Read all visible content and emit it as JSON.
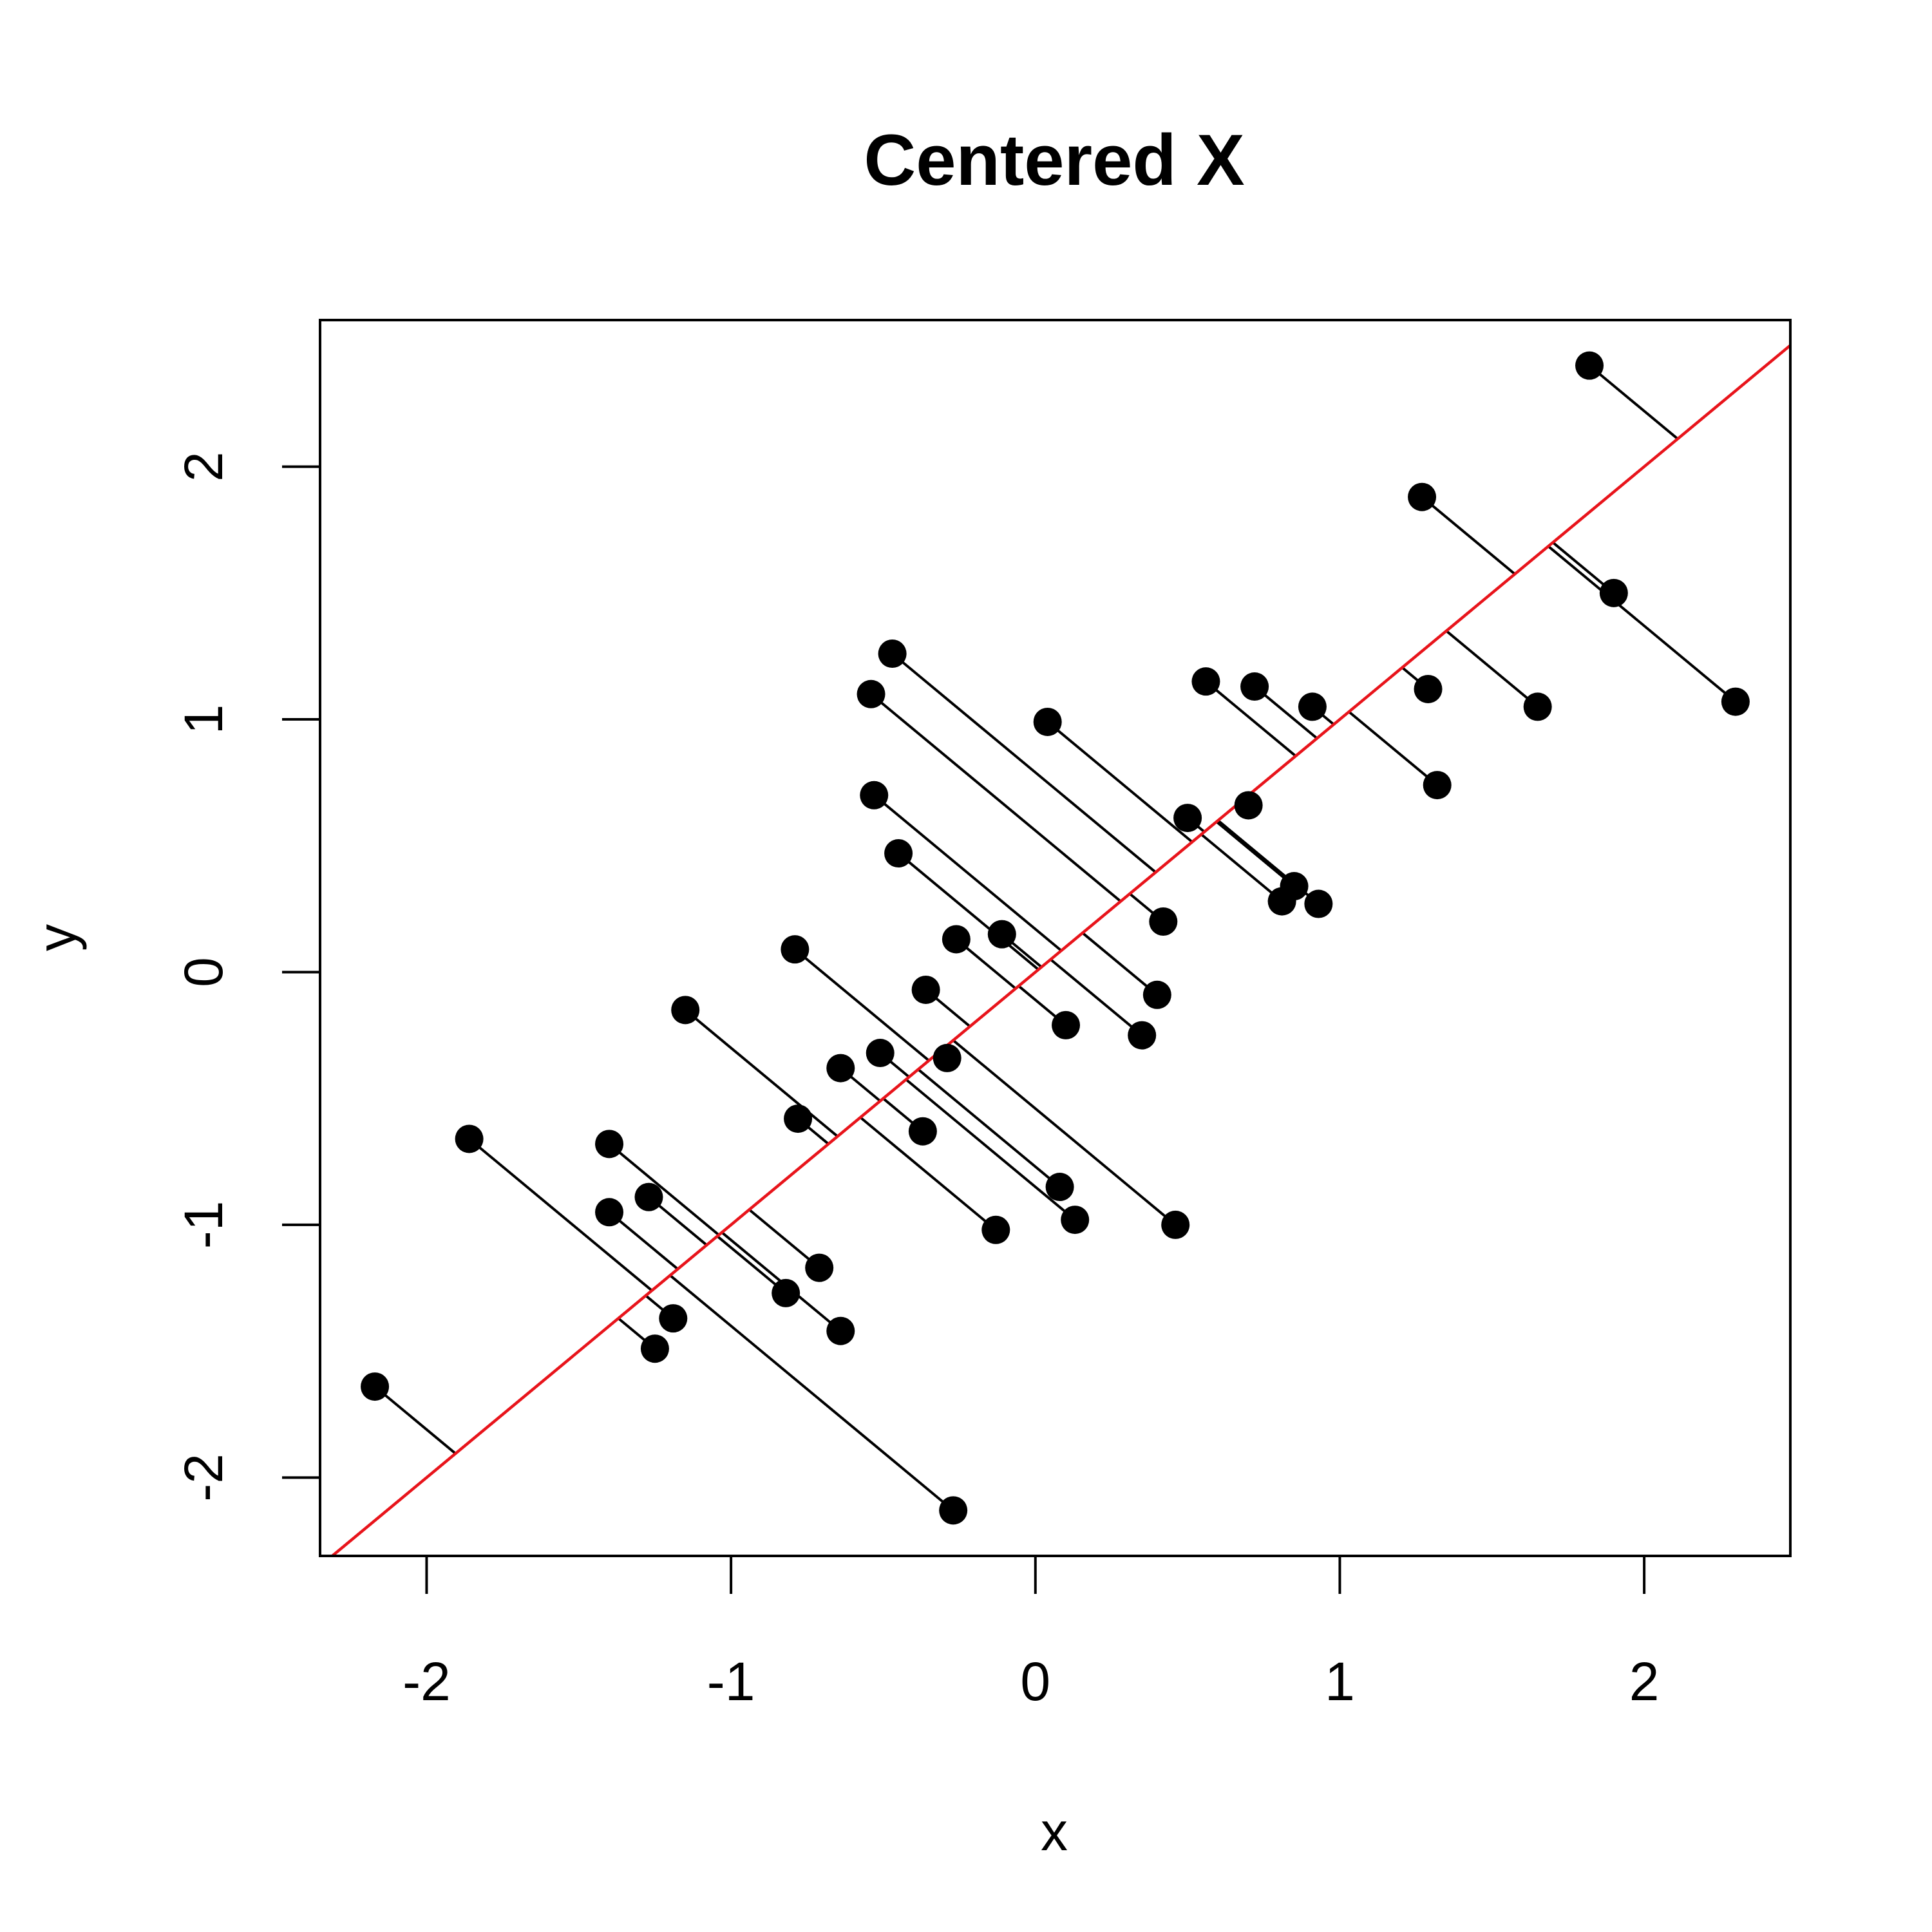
{
  "chart_data": {
    "type": "scatter",
    "title": "Centered X",
    "xlabel": "x",
    "ylabel": "y",
    "xlim": [
      -2.35,
      2.48
    ],
    "ylim": [
      -2.31,
      2.58
    ],
    "xticks": [
      -2,
      -1,
      0,
      1,
      2
    ],
    "yticks": [
      -2,
      -1,
      0,
      1,
      2
    ],
    "grid": false,
    "legend": "none",
    "regression_line": {
      "slope": 1,
      "intercept": 0,
      "color": "#e8141b"
    },
    "segment_direction": "orthogonal projection onto line",
    "point_color": "#000000",
    "series": [
      {
        "x": [
          1.82,
          1.27,
          1.9,
          2.3,
          1.65,
          1.29,
          1.32,
          0.56,
          0.72,
          0.91,
          0.04,
          -0.47,
          -0.54,
          0.5,
          0.7,
          0.85,
          0.81,
          0.93,
          0.42,
          0.4,
          -0.53,
          -0.45,
          0.35,
          -0.26,
          -0.11,
          0.1,
          -0.79,
          -0.36,
          -0.29,
          -1.15,
          -0.51,
          -0.64,
          -0.78,
          -0.37,
          0.08,
          0.13,
          -0.13,
          0.46,
          -1.86,
          -1.4,
          -1.27,
          -1.4,
          -0.71,
          -0.82,
          -0.64,
          -1.19,
          -1.25,
          -2.17,
          -0.27
        ],
        "y": [
          2.4,
          1.88,
          1.5,
          1.07,
          1.05,
          1.12,
          0.74,
          1.15,
          1.13,
          1.05,
          0.99,
          1.26,
          1.1,
          0.61,
          0.66,
          0.34,
          0.28,
          0.27,
          0.2,
          -0.09,
          0.7,
          0.47,
          -0.25,
          0.13,
          0.15,
          -0.21,
          0.09,
          -0.07,
          -0.34,
          -0.15,
          -0.32,
          -0.38,
          -0.58,
          -0.63,
          -0.85,
          -0.98,
          -1.02,
          -1.0,
          -0.66,
          -0.68,
          -0.89,
          -0.95,
          -1.17,
          -1.27,
          -1.42,
          -1.37,
          -1.49,
          -1.64,
          -2.13
        ]
      }
    ]
  }
}
